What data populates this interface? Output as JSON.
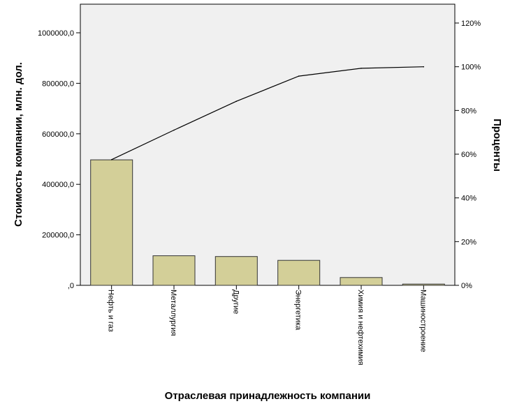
{
  "chart_data": {
    "type": "bar",
    "categories": [
      "Нефть и газ",
      "Металлургия",
      "Другие",
      "Энергетика",
      "Химия и нефтехимия",
      "Машиностроение"
    ],
    "series": [
      {
        "type": "bar",
        "values": [
          497000,
          117000,
          114000,
          99000,
          31000,
          5000
        ]
      },
      {
        "type": "line",
        "axis": "right",
        "values": [
          57.5,
          71.0,
          84.2,
          95.7,
          99.3,
          100.0
        ]
      }
    ],
    "xlabel": "Отраслевая принадлежность компании",
    "ylabel": "Стоимость компании, млн. дол.",
    "ylabel_right": "Проценты",
    "ylim": [
      0,
      1000000
    ],
    "ylim_right": [
      0,
      120
    ],
    "yticks": [
      ",0",
      "200000,0",
      "400000,0",
      "600000,0",
      "800000,0",
      "1000000,0"
    ],
    "yticks_right": [
      "0%",
      "20%",
      "40%",
      "60%",
      "80%",
      "100%",
      "120%"
    ],
    "colors": {
      "bar": "#d3cf98",
      "bar_stroke": "#333333",
      "plot_bg": "#f0f0f0",
      "line": "#000000"
    },
    "grid": false
  }
}
